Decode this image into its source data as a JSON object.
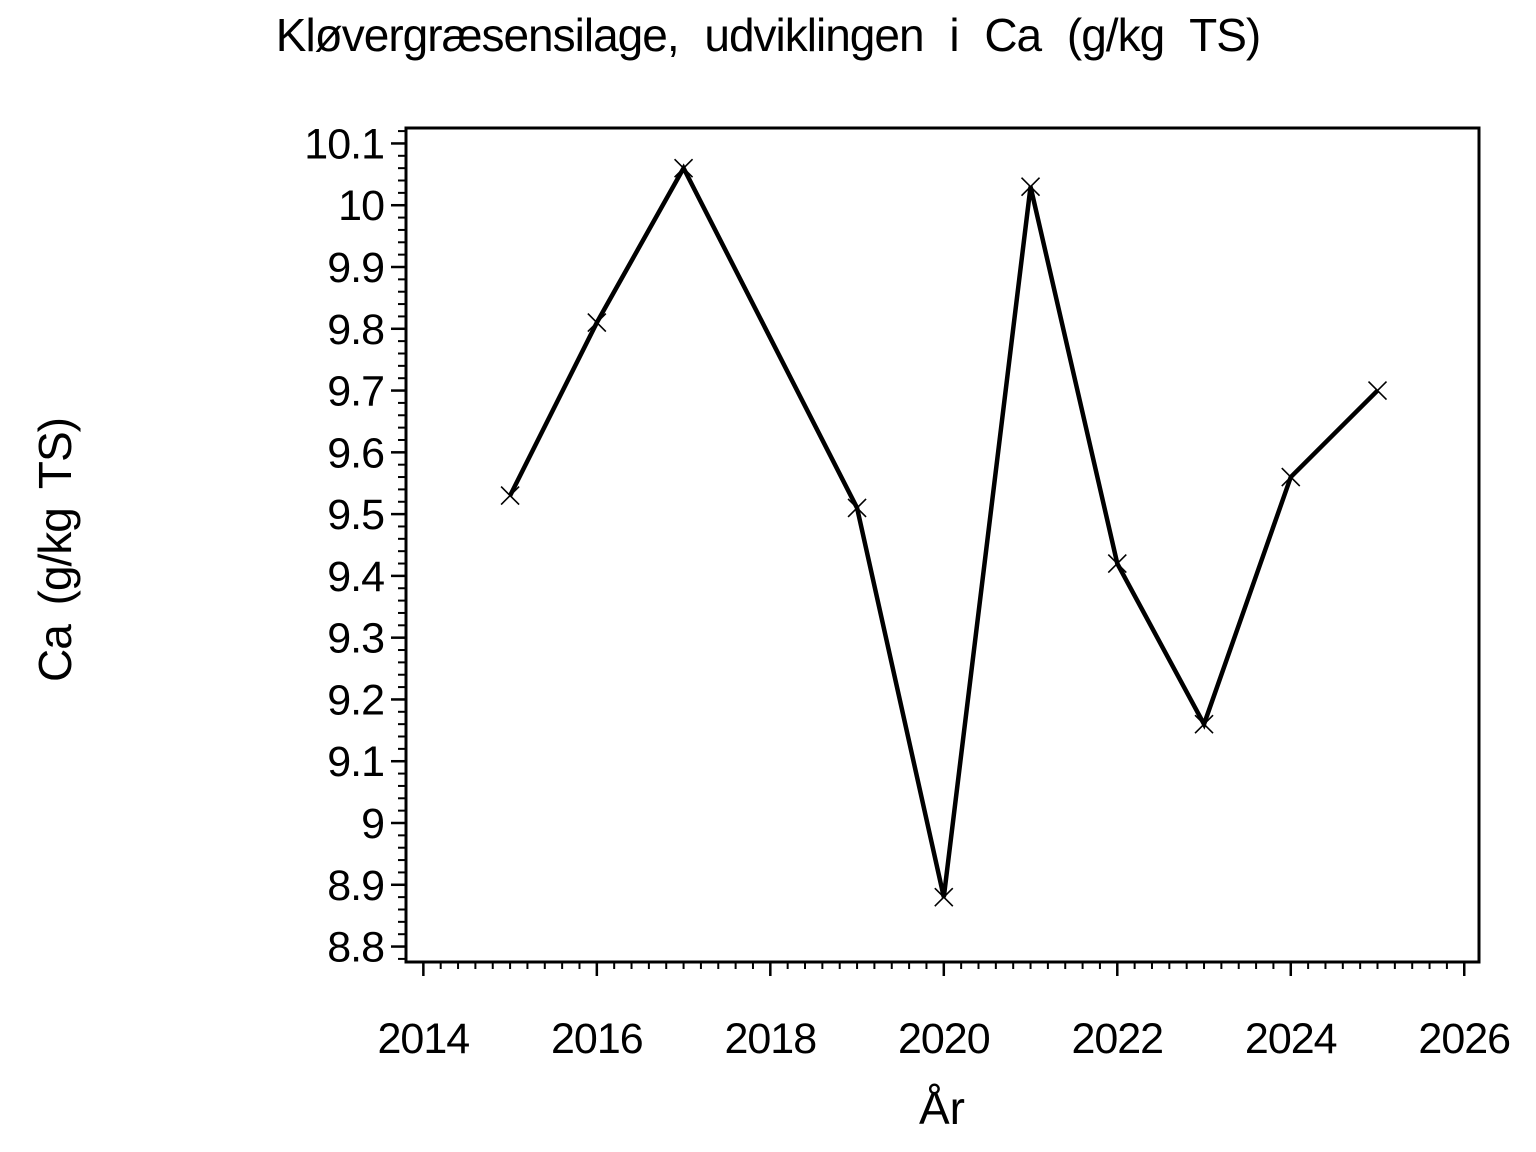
{
  "chart_data": {
    "type": "line",
    "title": "Kløvergræsensilage, udviklingen i Ca (g/kg TS)",
    "xlabel": "År",
    "ylabel": "Ca (g/kg TS)",
    "series": [
      {
        "name": "Ca",
        "x": [
          2015,
          2016,
          2017,
          2019,
          2020,
          2021,
          2022,
          2023,
          2024,
          2025
        ],
        "y": [
          9.53,
          9.81,
          10.06,
          9.51,
          8.88,
          10.03,
          9.42,
          9.16,
          9.56,
          9.7
        ]
      }
    ],
    "marker": "x",
    "line_color": "#000000",
    "text_color": "#000000",
    "background": "#ffffff",
    "grid": false,
    "legend": null,
    "xlim": [
      2013.8,
      2026.17
    ],
    "ylim": [
      8.775,
      10.125
    ],
    "x_tick_values": [
      2014,
      2016,
      2018,
      2020,
      2022,
      2024,
      2026
    ],
    "x_tick_labels": [
      "2014",
      "2016",
      "2018",
      "2020",
      "2022",
      "2024",
      "2026"
    ],
    "x_minor_step": 0.2,
    "y_tick_values": [
      8.8,
      8.9,
      9.0,
      9.1,
      9.2,
      9.3,
      9.4,
      9.5,
      9.6,
      9.7,
      9.8,
      9.9,
      10.0,
      10.1
    ],
    "y_tick_labels": [
      "8.8",
      "8.9",
      "9",
      "9.1",
      "9.2",
      "9.3",
      "9.4",
      "9.5",
      "9.6",
      "9.7",
      "9.8",
      "9.9",
      "10",
      "10.1"
    ],
    "y_minor_step": 0.02
  }
}
